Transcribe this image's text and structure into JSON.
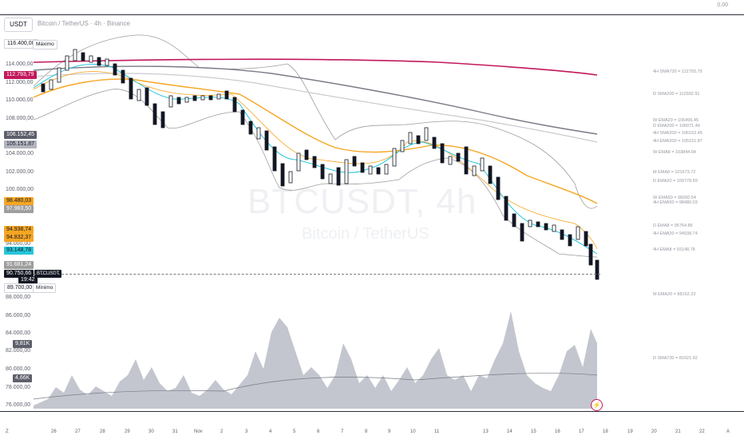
{
  "header": {
    "currency": "USDT",
    "title": "Bitcoin / TetherUS · 4h · Binance",
    "top_right_value": "0,00"
  },
  "watermark": {
    "symbol": "BTCUSDT, 4h",
    "name": "Bitcoin / TetherUS"
  },
  "price_scale": {
    "ticks": [
      "114.000,00",
      "112.000,00",
      "110.000,00",
      "108.000,00",
      "104.000,00",
      "102.000,00",
      "100.000,00",
      "94.000,00",
      "88.000,00",
      "86.000,00",
      "84.000,00",
      "82.000,00",
      "80.000,00",
      "78.000,00",
      "76.000,00"
    ]
  },
  "left_tags": {
    "max_value": "116.400,00",
    "max_label": "Máximo",
    "min_value": "89.700,00",
    "min_label": "Mínimo",
    "sma730_4h": "112.793,79",
    "gray1": "106.152,45",
    "gray2": "105.151,87",
    "orange1": "98.480,03",
    "gray3": "97.983,50",
    "orange2": "94.938,74",
    "orange3": "94.832,37",
    "teal": "93.148,78",
    "gray4": "91.681,24",
    "price": "90.750,66",
    "countdown": "19:42",
    "symbol_chip": "BTCUSDT",
    "vol1": "9,81K",
    "vol2": "4,66K"
  },
  "right_labels": [
    "4H SMA730 = 112793.79",
    "D SMA200 = 110392.91",
    "W EMA20 = 105496.45",
    "D EMA200 = 106071.49",
    "4H SMA200 = 106152.45",
    "4H EMA200 = 105151.87",
    "W EMA8 = 103844.94",
    "M EMA8 = 101673.72",
    "D EMA20 = 100778.69",
    "W EMA50 = 98260.54",
    "4H EMA50 = 98480.03",
    "D EMA8 = 95764.86",
    "4H EMA20 = 94938.74",
    "4H EMA8 = 93148.78",
    "M EMA20 = 88162.23",
    "D SMA730 = 81021.92"
  ],
  "time_axis": [
    "26",
    "27",
    "28",
    "29",
    "30",
    "31",
    "Nov",
    "2",
    "3",
    "4",
    "5",
    "6",
    "7",
    "8",
    "9",
    "10",
    "11",
    "13",
    "14",
    "15",
    "16",
    "17",
    "18",
    "19",
    "20",
    "21",
    "22"
  ],
  "corner_labels": {
    "left": "Z",
    "right": "A"
  },
  "colors": {
    "up": "#ffffff",
    "down": "#131722",
    "sma730": "#c2185b",
    "ema_orange": "#f5a623",
    "ema_teal": "#26c6da",
    "sma200_gray": "#787b86",
    "bb_gray": "#9e9e9e",
    "volume": "#b2b5be"
  },
  "icons": {
    "bolt": "lightning-icon"
  }
}
